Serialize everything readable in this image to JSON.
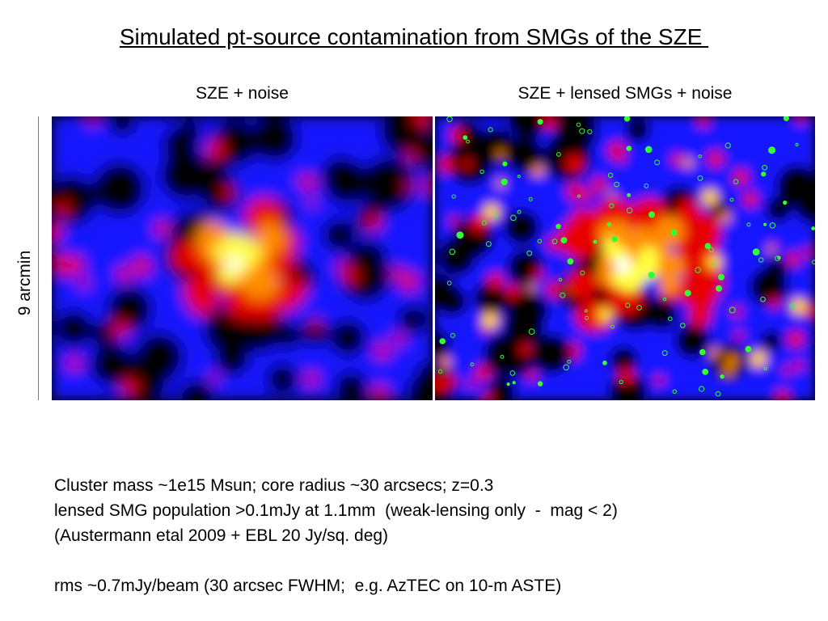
{
  "title": "Simulated pt-source contamination from SMGs of the SZE ",
  "panels": [
    {
      "label": "SZE + noise"
    },
    {
      "label": "SZE + lensed SMGs + noise"
    }
  ],
  "scale_label": "9 arcmin",
  "caption": [
    "Cluster mass ~1e15 Msun; core radius ~30 arcsecs; z=0.3",
    "lensed SMG population >0.1mJy at 1.1mm  (weak-lensing only  -  mag < 2)",
    "(Austermann etal 2009 + EBL 20 Jy/sq. deg)",
    "",
    "rms ~0.7mJy/beam (30 arcsec FWHM;  e.g. AzTEC on 10-m ASTE)"
  ],
  "colormap": [
    "#000000",
    "#1414ff",
    "#e60000",
    "#ff8c00",
    "#ffff40",
    "#ffffff"
  ],
  "source_marker_color": "#33ff33"
}
